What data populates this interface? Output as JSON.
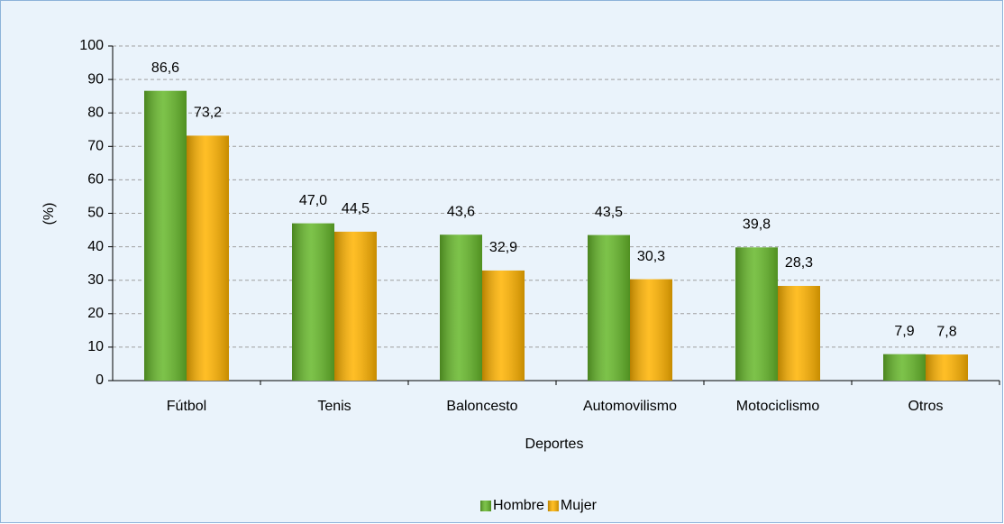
{
  "chart_data": {
    "type": "bar",
    "x_label": "Deportes",
    "y_label": "(%)",
    "categories": [
      "Fútbol",
      "Tenis",
      "Baloncesto",
      "Automovilismo",
      "Motociclismo",
      "Otros"
    ],
    "series": [
      {
        "name": "Hombre",
        "color": "#66b82a",
        "values": [
          86.6,
          47.0,
          43.6,
          43.5,
          39.8,
          7.9
        ],
        "value_labels": [
          "86,6",
          "47,0",
          "43,6",
          "43,5",
          "39,8",
          "7,9"
        ]
      },
      {
        "name": "Mujer",
        "color": "#ffb300",
        "values": [
          73.2,
          44.5,
          32.9,
          30.3,
          28.3,
          7.8
        ],
        "value_labels": [
          "73,2",
          "44,5",
          "32,9",
          "30,3",
          "28,3",
          "7,8"
        ]
      }
    ],
    "ylim": [
      0,
      100
    ],
    "yticks": [
      0,
      10,
      20,
      30,
      40,
      50,
      60,
      70,
      80,
      90,
      100
    ],
    "grid": true,
    "legend": "bottom"
  }
}
